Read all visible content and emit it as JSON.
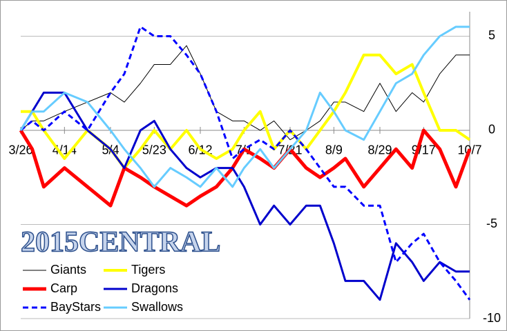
{
  "chart_data": {
    "type": "line",
    "title": "2015CENTRAL",
    "x": [
      0,
      5,
      10,
      19,
      29,
      39,
      45,
      52,
      58,
      65,
      72,
      78,
      85,
      92,
      97,
      104,
      110,
      117,
      124,
      130,
      136,
      141,
      149,
      156,
      163,
      170,
      175,
      182,
      189,
      195
    ],
    "xlim": [
      0,
      195
    ],
    "xticks": [
      {
        "value": 0,
        "label": "3/26"
      },
      {
        "value": 19,
        "label": "4/14"
      },
      {
        "value": 39,
        "label": "5/4"
      },
      {
        "value": 58,
        "label": "5/23"
      },
      {
        "value": 78,
        "label": "6/12"
      },
      {
        "value": 97,
        "label": "7/1"
      },
      {
        "value": 117,
        "label": "7/21"
      },
      {
        "value": 136,
        "label": "8/9"
      },
      {
        "value": 156,
        "label": "8/29"
      },
      {
        "value": 175,
        "label": "9/17"
      },
      {
        "value": 195,
        "label": "10/7"
      }
    ],
    "ylim": [
      -10,
      6.3
    ],
    "yticks": [
      5,
      0,
      -5,
      -10
    ],
    "grid": true,
    "legend": "lower left",
    "series": [
      {
        "name": "Giants",
        "color": "#000000",
        "width": 1,
        "values": [
          0,
          0.5,
          0.5,
          1,
          1.5,
          2,
          1.5,
          2.5,
          3.5,
          3.5,
          4.5,
          3,
          1,
          0.5,
          0.5,
          0,
          0.5,
          -0.5,
          0,
          0.5,
          1.5,
          1.5,
          1,
          2.5,
          1,
          2,
          1.5,
          3,
          4,
          4
        ]
      },
      {
        "name": "Tigers",
        "color": "#ffff00",
        "width": 4,
        "values": [
          1,
          1,
          0,
          -1.5,
          0,
          -1,
          -2,
          -1,
          0,
          -1,
          0,
          -1,
          -1.5,
          -1,
          0,
          1,
          -1,
          0,
          -1,
          0,
          1,
          2,
          4,
          4,
          3,
          3.5,
          2,
          0,
          0,
          -0.5
        ]
      },
      {
        "name": "Carp",
        "color": "#ff0000",
        "width": 5,
        "values": [
          0,
          -1,
          -3,
          -2,
          -3,
          -4,
          -2,
          -2.5,
          -3,
          -3.5,
          -4,
          -3.5,
          -3,
          -2,
          -1,
          -1.5,
          -2,
          -1,
          -2,
          -2.5,
          -2,
          -1.5,
          -3,
          -2,
          -1,
          -2,
          0,
          -1,
          -3,
          -1
        ]
      },
      {
        "name": "Dragons",
        "color": "#0000cc",
        "width": 3,
        "values": [
          0,
          1,
          2,
          2,
          0,
          -1,
          -2,
          0,
          0.5,
          -1,
          -2,
          -2.5,
          -2,
          -2,
          -3,
          -5,
          -4,
          -5,
          -4,
          -4,
          -6,
          -8,
          -8,
          -9,
          -6,
          -7,
          -8,
          -7,
          -7.5,
          -7.5
        ]
      },
      {
        "name": "BayStars",
        "color": "#0000ff",
        "width": 3,
        "dashed": true,
        "values": [
          0,
          0.5,
          0,
          1,
          0,
          2,
          3,
          5.5,
          5,
          5,
          4,
          3,
          1,
          -1.5,
          -1,
          -0.5,
          -1,
          0,
          -1,
          -2,
          -3,
          -3,
          -4,
          -4,
          -7,
          -6,
          -5.5,
          -7,
          -8,
          -9
        ]
      },
      {
        "name": "Swallows",
        "color": "#66ccff",
        "width": 3,
        "values": [
          0,
          1,
          1,
          2,
          1.5,
          0,
          -1,
          -2,
          -3,
          -2,
          -2.5,
          -3,
          -2,
          -3,
          -2,
          -1,
          -2,
          -1,
          0,
          2,
          1,
          0,
          -0.5,
          1,
          2.5,
          3,
          4,
          5,
          5.5,
          5.5
        ]
      }
    ]
  }
}
